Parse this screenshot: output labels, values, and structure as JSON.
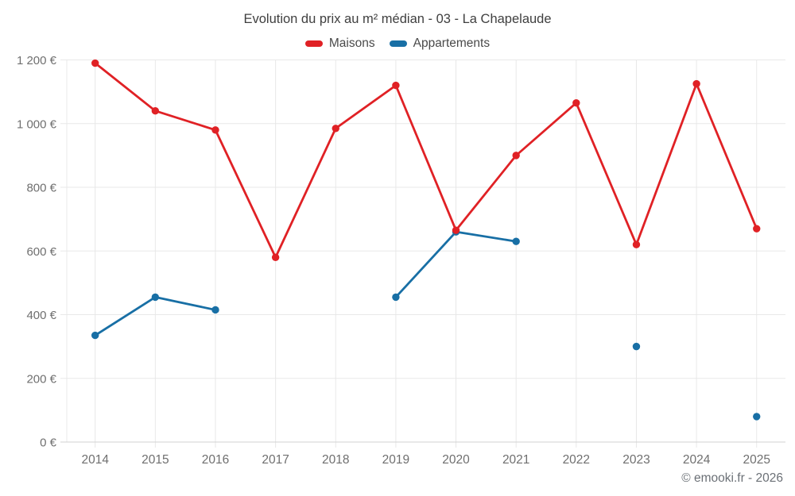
{
  "chart_data": {
    "type": "line",
    "title": "Evolution du prix au m² médian - 03 - La Chapelaude",
    "categories": [
      "2014",
      "2015",
      "2016",
      "2017",
      "2018",
      "2019",
      "2020",
      "2021",
      "2022",
      "2023",
      "2024",
      "2025"
    ],
    "series": [
      {
        "name": "Maisons",
        "color": "#e02125",
        "values": [
          1190,
          1040,
          980,
          580,
          985,
          1120,
          665,
          900,
          1065,
          620,
          1125,
          670
        ]
      },
      {
        "name": "Appartements",
        "color": "#186fa5",
        "values": [
          335,
          455,
          415,
          null,
          null,
          455,
          660,
          630,
          null,
          300,
          null,
          80
        ]
      }
    ],
    "y_ticks": [
      {
        "value": 0,
        "label": "0 €"
      },
      {
        "value": 200,
        "label": "200 €"
      },
      {
        "value": 400,
        "label": "400 €"
      },
      {
        "value": 600,
        "label": "600 €"
      },
      {
        "value": 800,
        "label": "800 €"
      },
      {
        "value": 1000,
        "label": "1 000 €"
      },
      {
        "value": 1200,
        "label": "1 200 €"
      }
    ],
    "ylim": [
      0,
      1200
    ],
    "xlabel": "",
    "ylabel": "",
    "grid": true,
    "legend_position": "top",
    "grid_color": "#e8e8e8",
    "axis_line_color": "#d2d2d2"
  },
  "footer": {
    "copyright": "© emooki.fr - 2026"
  }
}
